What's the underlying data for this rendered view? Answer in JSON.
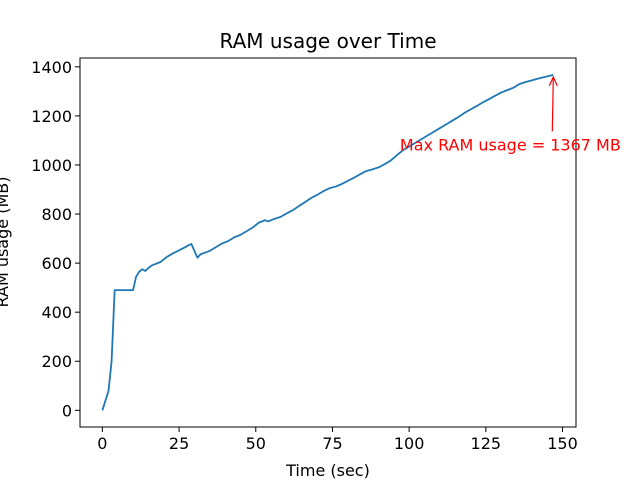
{
  "chart_data": {
    "type": "line",
    "title": "RAM usage over Time",
    "xlabel": "Time (sec)",
    "ylabel": "RAM usage (MB)",
    "xlim": [
      -7.3,
      154.4
    ],
    "ylim": [
      -68,
      1436
    ],
    "x_ticks": [
      0,
      25,
      50,
      75,
      100,
      125,
      150
    ],
    "y_ticks": [
      0,
      200,
      400,
      600,
      800,
      1000,
      1200,
      1400
    ],
    "grid": false,
    "line_color": "#1f77b4",
    "series": [
      {
        "x": [
          0,
          2,
          3,
          4,
          5,
          6,
          9,
          10,
          11,
          12,
          13,
          14,
          15,
          16,
          18,
          19,
          21,
          23,
          25,
          27,
          28,
          29,
          31,
          32,
          34,
          35,
          37,
          39,
          41,
          43,
          45,
          47,
          49,
          51,
          53,
          54,
          56,
          58,
          60,
          62,
          64,
          66,
          68,
          70,
          72,
          74,
          76,
          78,
          80,
          82,
          84,
          86,
          88,
          90,
          92,
          94,
          96,
          98,
          100,
          102,
          104,
          106,
          108,
          110,
          112,
          114,
          116,
          118,
          120,
          122,
          124,
          126,
          128,
          130,
          132,
          134,
          136,
          138,
          140,
          142,
          144,
          146,
          147
        ],
        "y": [
          0,
          80,
          200,
          490,
          490,
          490,
          490,
          490,
          545,
          565,
          575,
          568,
          580,
          590,
          600,
          605,
          625,
          640,
          652,
          665,
          672,
          678,
          622,
          636,
          645,
          650,
          665,
          680,
          690,
          705,
          715,
          730,
          745,
          765,
          775,
          770,
          780,
          788,
          802,
          815,
          832,
          848,
          865,
          878,
          893,
          905,
          912,
          922,
          935,
          948,
          962,
          975,
          982,
          990,
          1003,
          1018,
          1040,
          1060,
          1075,
          1090,
          1105,
          1120,
          1135,
          1150,
          1165,
          1180,
          1195,
          1212,
          1226,
          1240,
          1255,
          1268,
          1282,
          1295,
          1305,
          1315,
          1330,
          1338,
          1345,
          1352,
          1358,
          1364,
          1367
        ]
      }
    ],
    "annotation": {
      "text": "Max RAM usage = 1367 MB",
      "color": "#ff0000",
      "point_x": 147,
      "point_y": 1367,
      "text_x": 97,
      "text_y": 1080
    }
  }
}
